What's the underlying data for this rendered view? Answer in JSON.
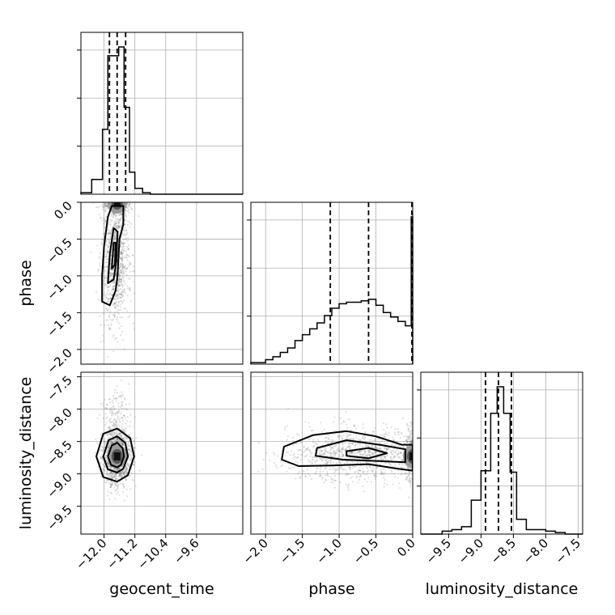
{
  "chart_data": {
    "type": "corner",
    "parameters": [
      "geocent_time",
      "phase",
      "luminosity_distance"
    ],
    "axes": {
      "geocent_time": {
        "label": "geocent_time",
        "range": [
          -12.6,
          -8.4
        ],
        "ticks": [
          -12.0,
          -11.2,
          -10.4,
          -9.6
        ],
        "tick_labels": [
          "−12.0",
          "−11.2",
          "−10.4",
          "−9.6"
        ]
      },
      "phase": {
        "label": "phase",
        "range": [
          -2.2,
          0.0
        ],
        "ticks": [
          -2.0,
          -1.5,
          -1.0,
          -0.5,
          0.0
        ],
        "tick_labels": [
          "−2.0",
          "−1.5",
          "−1.0",
          "−0.5",
          "0.0"
        ]
      },
      "luminosity_distance": {
        "label": "luminosity_distance",
        "range": [
          -9.93,
          -7.43
        ],
        "ticks": [
          -9.5,
          -9.0,
          -8.5,
          -8.0,
          -7.5
        ],
        "tick_labels": [
          "−9.5",
          "−9.0",
          "−8.5",
          "−8.0",
          "−7.5"
        ]
      }
    },
    "histograms": {
      "geocent_time": {
        "bin_edges": [
          -12.6,
          -12.32,
          -12.04,
          -11.9,
          -11.76,
          -11.62,
          -11.48,
          -11.34,
          -11.2,
          -11.0,
          -10.8,
          -8.4
        ],
        "counts": [
          0.01,
          0.1,
          0.44,
          0.94,
          0.94,
          1.0,
          0.59,
          0.15,
          0.04,
          0.01,
          0.0
        ],
        "quantiles": [
          -11.86,
          -11.66,
          -11.44
        ]
      },
      "phase": {
        "bin_edges": [
          -2.2,
          -2.0,
          -1.9,
          -1.8,
          -1.7,
          -1.6,
          -1.5,
          -1.4,
          -1.3,
          -1.2,
          -1.1,
          -1.0,
          -0.9,
          -0.8,
          -0.7,
          -0.6,
          -0.5,
          -0.4,
          -0.3,
          -0.2,
          -0.1,
          -0.02,
          0.0
        ],
        "counts": [
          0.01,
          0.03,
          0.05,
          0.08,
          0.11,
          0.16,
          0.2,
          0.24,
          0.28,
          0.33,
          0.38,
          0.41,
          0.42,
          0.42,
          0.43,
          0.44,
          0.4,
          0.35,
          0.32,
          0.29,
          0.26,
          1.0
        ],
        "quantiles": [
          -1.12,
          -0.6,
          0.0
        ]
      },
      "luminosity_distance": {
        "bin_edges": [
          -9.93,
          -9.6,
          -9.45,
          -9.3,
          -9.15,
          -9.0,
          -8.85,
          -8.75,
          -8.65,
          -8.55,
          -8.45,
          -8.3,
          -8.15,
          -8.0,
          -7.85,
          -7.7,
          -7.43
        ],
        "counts": [
          0.0,
          0.02,
          0.03,
          0.05,
          0.23,
          0.43,
          0.82,
          1.0,
          0.82,
          0.42,
          0.1,
          0.03,
          0.03,
          0.02,
          0.01,
          0.0
        ],
        "quantiles": [
          -8.93,
          -8.73,
          -8.53
        ]
      }
    },
    "joint": [
      {
        "x": "geocent_time",
        "y": "phase",
        "peak": [
          -11.66,
          0.0
        ],
        "contour_levels": [
          [
            [
              -12.05,
              -1.35
            ],
            [
              -12.05,
              -1.0
            ],
            [
              -12.0,
              -0.6
            ],
            [
              -11.9,
              -0.2
            ],
            [
              -11.8,
              -0.05
            ],
            [
              -11.5,
              -0.05
            ],
            [
              -11.5,
              -0.3
            ],
            [
              -11.6,
              -0.5
            ],
            [
              -11.65,
              -1.0
            ],
            [
              -11.7,
              -1.2
            ],
            [
              -11.85,
              -1.4
            ]
          ],
          [
            [
              -11.9,
              -1.1
            ],
            [
              -11.85,
              -0.7
            ],
            [
              -11.75,
              -0.35
            ],
            [
              -11.65,
              -0.4
            ],
            [
              -11.68,
              -0.8
            ],
            [
              -11.75,
              -1.05
            ]
          ],
          [
            [
              -11.8,
              -0.9
            ],
            [
              -11.75,
              -0.55
            ],
            [
              -11.7,
              -0.55
            ],
            [
              -11.72,
              -0.85
            ]
          ]
        ]
      },
      {
        "x": "geocent_time",
        "y": "luminosity_distance",
        "peak": [
          -11.66,
          -8.73
        ],
        "contour_levels": [
          [
            [
              -12.2,
              -8.73
            ],
            [
              -12.02,
              -8.38
            ],
            [
              -11.66,
              -8.3
            ],
            [
              -11.32,
              -8.45
            ],
            [
              -11.22,
              -8.73
            ],
            [
              -11.38,
              -9.02
            ],
            [
              -11.66,
              -9.12
            ],
            [
              -12.02,
              -9.05
            ]
          ],
          [
            [
              -12.02,
              -8.73
            ],
            [
              -11.88,
              -8.48
            ],
            [
              -11.66,
              -8.42
            ],
            [
              -11.45,
              -8.52
            ],
            [
              -11.38,
              -8.73
            ],
            [
              -11.5,
              -8.92
            ],
            [
              -11.66,
              -8.98
            ],
            [
              -11.9,
              -8.93
            ]
          ],
          [
            [
              -11.9,
              -8.73
            ],
            [
              -11.8,
              -8.56
            ],
            [
              -11.66,
              -8.52
            ],
            [
              -11.52,
              -8.6
            ],
            [
              -11.48,
              -8.73
            ],
            [
              -11.56,
              -8.86
            ],
            [
              -11.66,
              -8.9
            ],
            [
              -11.82,
              -8.86
            ]
          ]
        ]
      },
      {
        "x": "phase",
        "y": "luminosity_distance",
        "peak": [
          0.0,
          -8.73
        ],
        "contour_levels": [
          [
            [
              -1.75,
              -8.58
            ],
            [
              -1.35,
              -8.4
            ],
            [
              -0.9,
              -8.34
            ],
            [
              -0.5,
              -8.42
            ],
            [
              -0.15,
              -8.55
            ],
            [
              0.0,
              -8.55
            ],
            [
              0.0,
              -8.95
            ],
            [
              -0.2,
              -8.92
            ],
            [
              -0.6,
              -8.85
            ],
            [
              -1.1,
              -8.87
            ],
            [
              -1.55,
              -8.88
            ],
            [
              -1.78,
              -8.78
            ]
          ],
          [
            [
              -1.3,
              -8.6
            ],
            [
              -0.9,
              -8.48
            ],
            [
              -0.45,
              -8.55
            ],
            [
              -0.1,
              -8.62
            ],
            [
              -0.1,
              -8.82
            ],
            [
              -0.5,
              -8.8
            ],
            [
              -0.95,
              -8.78
            ],
            [
              -1.32,
              -8.72
            ]
          ],
          [
            [
              -0.9,
              -8.65
            ],
            [
              -0.6,
              -8.6
            ],
            [
              -0.35,
              -8.68
            ],
            [
              -0.6,
              -8.76
            ],
            [
              -0.9,
              -8.72
            ]
          ]
        ]
      }
    ]
  }
}
